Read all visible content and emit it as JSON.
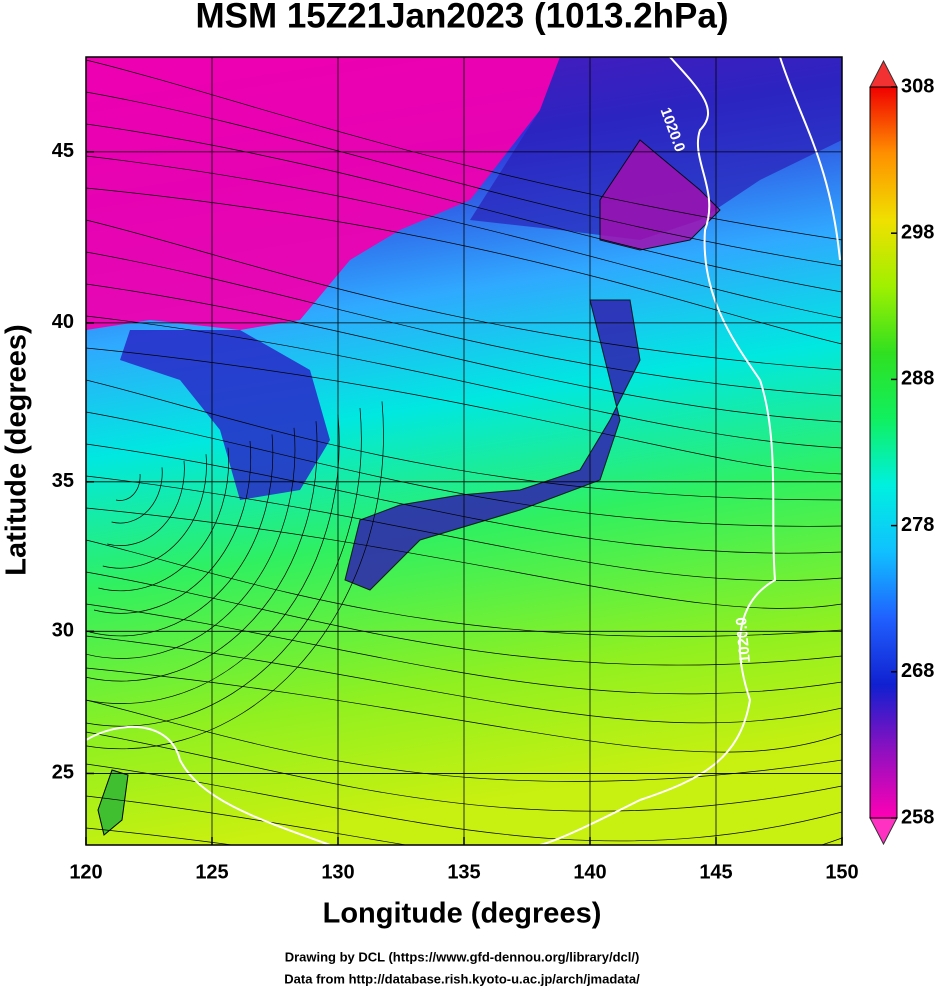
{
  "chart_data": {
    "type": "map",
    "title": "MSM 15Z21Jan2023 (1013.2hPa)",
    "xlabel": "Longitude (degrees)",
    "ylabel": "Latitude  (degrees)",
    "projection": "mercator",
    "xlim": [
      120,
      150
    ],
    "xticks": [
      120,
      125,
      130,
      135,
      140,
      145,
      150
    ],
    "ylim": [
      22.4,
      47.6
    ],
    "yticks": [
      25,
      30,
      35,
      40,
      45
    ],
    "grid": true,
    "colorbar": {
      "lim": [
        258,
        308
      ],
      "ticks": [
        258,
        268,
        278,
        288,
        298,
        308
      ],
      "colors": [
        "#ff00b4",
        "#9010c0",
        "#1020d0",
        "#2060ff",
        "#10c0ff",
        "#00f0e0",
        "#10f060",
        "#30e020",
        "#a0f000",
        "#f0e000",
        "#ff9000",
        "#f00000"
      ]
    },
    "contour_labels": [
      "1020.0",
      "1020.0"
    ],
    "credits": [
      "Drawing by DCL (https://www.gfd-dennou.org/library/dcl/)",
      "Data from http://database.rish.kyoto-u.ac.jp/arch/jmadata/"
    ]
  }
}
